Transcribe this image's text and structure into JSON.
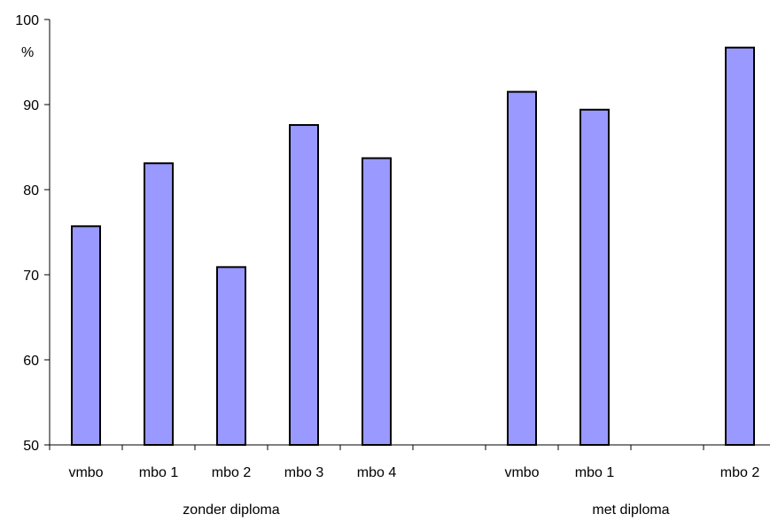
{
  "chart_data": {
    "type": "bar",
    "ylabel": "%",
    "ylim": [
      50,
      100
    ],
    "yticks": [
      50,
      60,
      70,
      80,
      90,
      100
    ],
    "grid": false,
    "bar_color": "#9999ff",
    "bar_stroke": "#000000",
    "slots": [
      "vmbo",
      "mbo 1",
      "mbo 2",
      "mbo 3",
      "mbo 4",
      "",
      "vmbo",
      "mbo 1",
      "",
      "mbo 2"
    ],
    "values": [
      75.7,
      83.1,
      70.9,
      87.6,
      83.7,
      null,
      91.5,
      89.4,
      null,
      96.7
    ],
    "groups": [
      {
        "label": "zonder diploma",
        "slots": [
          0,
          4
        ]
      },
      {
        "label": "met diploma",
        "slots": [
          6,
          9
        ]
      }
    ]
  }
}
